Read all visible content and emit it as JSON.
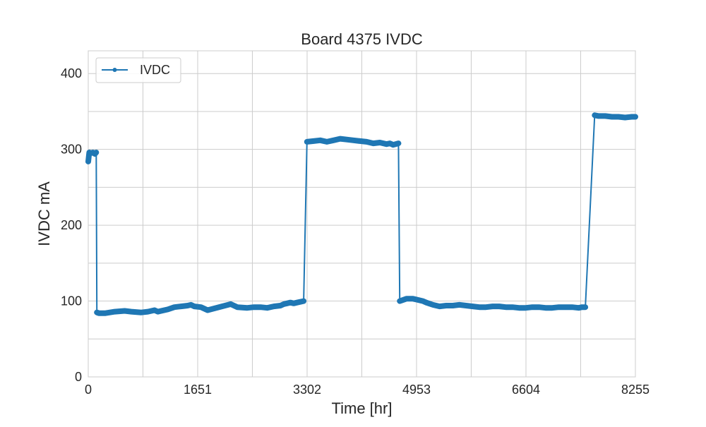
{
  "chart_data": {
    "type": "line",
    "title": "Board 4375 IVDC",
    "xlabel": "Time [hr]",
    "ylabel": "IVDC mA",
    "xlim": [
      0,
      8255
    ],
    "ylim": [
      0,
      430
    ],
    "x_ticks": [
      0,
      1651,
      3302,
      4953,
      6604,
      8255
    ],
    "x_tick_labels": [
      "0",
      "1651",
      "3302",
      "4953",
      "6604",
      "8255"
    ],
    "x_minor_grid": [
      825,
      2476,
      4127,
      5778,
      7429
    ],
    "y_ticks": [
      0,
      100,
      200,
      300,
      400
    ],
    "y_tick_labels": [
      "0",
      "100",
      "200",
      "300",
      "400"
    ],
    "y_minor_grid": [
      50,
      150,
      250,
      350
    ],
    "grid": true,
    "legend": {
      "position": "top-left",
      "entries": [
        "IVDC"
      ]
    },
    "colors": {
      "series": "#1f77b4",
      "grid": "#cccccc",
      "text": "#262626"
    },
    "series": [
      {
        "name": "IVDC",
        "marker": "circle",
        "segments": [
          {
            "x": [
              0,
              15,
              40,
              70,
              100,
              120
            ],
            "y": [
              284,
              296,
              295,
              296,
              294,
              296
            ]
          },
          {
            "x": [
              130,
              160,
              260,
              400,
              550,
              650,
              800,
              900,
              1000,
              1050,
              1100,
              1200,
              1300,
              1400,
              1500,
              1550,
              1600,
              1700,
              1750,
              1800,
              2150,
              2250,
              2400,
              2500,
              2600,
              2700,
              2800,
              2900,
              2950,
              3000,
              3050,
              3100,
              3150,
              3250
            ],
            "y": [
              85,
              84,
              84,
              86,
              87,
              86,
              85,
              86,
              88,
              86,
              87,
              89,
              92,
              93,
              94,
              95,
              93,
              92,
              90,
              88,
              96,
              92,
              91,
              92,
              92,
              91,
              93,
              94,
              96,
              97,
              98,
              97,
              98,
              100
            ]
          },
          {
            "x": [
              3300,
              3400,
              3500,
              3600,
              3700,
              3800,
              3900,
              4000,
              4100,
              4200,
              4300,
              4400,
              4500,
              4550,
              4600,
              4680
            ],
            "y": [
              310,
              311,
              312,
              310,
              312,
              314,
              313,
              312,
              311,
              310,
              308,
              309,
              307,
              308,
              306,
              308
            ]
          },
          {
            "x": [
              4700,
              4800,
              4900,
              4950,
              5000,
              5050,
              5100,
              5200,
              5300,
              5400,
              5500,
              5600,
              5700,
              5800,
              5900,
              6000,
              6100,
              6200,
              6300,
              6400,
              6500,
              6600,
              6700,
              6800,
              6900,
              7000,
              7100,
              7200,
              7300,
              7400,
              7450,
              7500
            ],
            "y": [
              100,
              103,
              103,
              102,
              101,
              100,
              98,
              95,
              93,
              94,
              94,
              95,
              94,
              93,
              92,
              92,
              93,
              93,
              92,
              92,
              91,
              91,
              92,
              92,
              91,
              91,
              92,
              92,
              92,
              91,
              92,
              92
            ]
          },
          {
            "x": [
              7640,
              7700,
              7800,
              7900,
              8000,
              8100,
              8200,
              8255
            ],
            "y": [
              345,
              344,
              344,
              343,
              343,
              342,
              343,
              343
            ]
          }
        ]
      }
    ]
  }
}
